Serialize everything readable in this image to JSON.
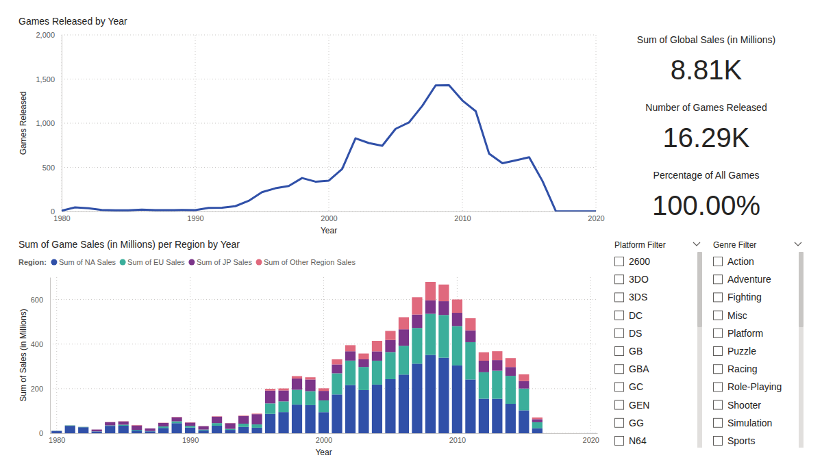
{
  "chart_data": [
    {
      "type": "line",
      "title": "Games Released by Year",
      "x_label": "Year",
      "y_label": "Games Released",
      "x": [
        1980,
        1981,
        1982,
        1983,
        1984,
        1985,
        1986,
        1987,
        1988,
        1989,
        1990,
        1991,
        1992,
        1993,
        1994,
        1995,
        1996,
        1997,
        1998,
        1999,
        2000,
        2001,
        2002,
        2003,
        2004,
        2005,
        2006,
        2007,
        2008,
        2009,
        2010,
        2011,
        2012,
        2013,
        2014,
        2015,
        2016,
        2017,
        2018,
        2020
      ],
      "values": [
        9,
        46,
        36,
        17,
        14,
        14,
        21,
        16,
        15,
        17,
        16,
        41,
        43,
        60,
        121,
        219,
        263,
        289,
        379,
        338,
        349,
        482,
        829,
        775,
        744,
        936,
        1008,
        1197,
        1428,
        1431,
        1257,
        1136,
        655,
        546,
        580,
        614,
        344,
        3,
        1,
        1
      ],
      "color": "#3050a8",
      "xlim": [
        1980,
        2020
      ],
      "xticks": [
        1980,
        1990,
        2000,
        2010,
        2020
      ],
      "ylim": [
        0,
        2000
      ],
      "yticks": [
        0,
        500,
        {
          "value": 1000,
          "label": "1,000"
        },
        {
          "value": 1500,
          "label": "1,500"
        },
        {
          "value": 2000,
          "label": "2,000"
        }
      ],
      "grid": true
    },
    {
      "type": "bar",
      "stacked": true,
      "title": "Sum of Game Sales (in Millions) per Region by Year",
      "x_label": "Year",
      "y_label": "Sum of Sales (in Millions)",
      "legend_title": "Region:",
      "legend": "top-left",
      "x": [
        1980,
        1981,
        1982,
        1983,
        1984,
        1985,
        1986,
        1987,
        1988,
        1989,
        1990,
        1991,
        1992,
        1993,
        1994,
        1995,
        1996,
        1997,
        1998,
        1999,
        2000,
        2001,
        2002,
        2003,
        2004,
        2005,
        2006,
        2007,
        2008,
        2009,
        2010,
        2011,
        2012,
        2013,
        2014,
        2015,
        2016,
        2017,
        2018,
        2020
      ],
      "series": [
        {
          "name": "Sum of NA Sales",
          "color": "#3050a8",
          "values": [
            10.59,
            33.4,
            26.92,
            7.76,
            33.28,
            33.73,
            12.5,
            8.46,
            23.87,
            45.15,
            25.46,
            12.76,
            33.87,
            15.12,
            28.15,
            24.82,
            86.76,
            94.75,
            128.36,
            126.06,
            94.49,
            173.98,
            216.19,
            193.59,
            218.29,
            242.61,
            263.12,
            312.05,
            351.44,
            338.85,
            304.24,
            241.21,
            154.96,
            154.77,
            131.97,
            102.82,
            22.66,
            0,
            0,
            0.27
          ]
        },
        {
          "name": "Sum of EU Sales",
          "color": "#3bae9b",
          "values": [
            0.67,
            1.96,
            1.65,
            0.8,
            2.1,
            4.74,
            2.84,
            1.41,
            6.59,
            8.44,
            7.63,
            3.95,
            11.71,
            4.65,
            14.88,
            14.9,
            47.26,
            48.32,
            66.9,
            62.67,
            52.75,
            94.89,
            109.74,
            103.81,
            107.32,
            121.55,
            129.24,
            160.18,
            184.4,
            191.59,
            176.57,
            167.31,
            118.78,
            125.8,
            125.65,
            97.71,
            26.76,
            0,
            0,
            0
          ]
        },
        {
          "name": "Sum of JP Sales",
          "color": "#7b3589",
          "values": [
            0,
            0,
            0,
            8.1,
            14.27,
            14.56,
            19.81,
            11.63,
            15.76,
            18.36,
            14.88,
            14.78,
            28.91,
            25.33,
            33.99,
            45.75,
            57.44,
            48.87,
            50.04,
            52.34,
            42.77,
            39.86,
            41.76,
            34.2,
            41.65,
            54.28,
            73.73,
            60.29,
            60.26,
            61.89,
            59.49,
            53.04,
            51.8,
            47.59,
            39.46,
            33.72,
            13.7,
            0.05,
            0,
            0
          ]
        },
        {
          "name": "Sum of Other Region Sales",
          "color": "#e0697d",
          "values": [
            0.12,
            0.32,
            0.31,
            0.14,
            0.7,
            0.92,
            1.93,
            0.2,
            0.99,
            1.5,
            1.4,
            0.74,
            1.65,
            0.89,
            2.2,
            2.64,
            7.69,
            9.13,
            11.03,
            10.05,
            11.62,
            22.76,
            27.28,
            26.01,
            47.29,
            40.58,
            54.43,
            77.58,
            82.39,
            74.77,
            59.9,
            54.39,
            37.82,
            39.82,
            40.02,
            30.01,
            7.75,
            0,
            0,
            0.02
          ]
        }
      ],
      "xlim": [
        1979.5,
        2020.5
      ],
      "xticks": [
        1980,
        1990,
        2000,
        2010,
        2020
      ],
      "ylim": [
        0,
        700
      ],
      "yticks": [
        0,
        200,
        400,
        600
      ],
      "grid": true
    }
  ],
  "cards": [
    {
      "label": "Sum of Global Sales (in Millions)",
      "value": "8.81K"
    },
    {
      "label": "Number of Games Released",
      "value": "16.29K"
    },
    {
      "label": "Percentage of All Games",
      "value": "100.00%"
    }
  ],
  "filters": [
    {
      "title": "Platform Filter",
      "items": [
        "2600",
        "3DO",
        "3DS",
        "DC",
        "DS",
        "GB",
        "GBA",
        "GC",
        "GEN",
        "GG",
        "N64"
      ]
    },
    {
      "title": "Genre Filter",
      "items": [
        "Action",
        "Adventure",
        "Fighting",
        "Misc",
        "Platform",
        "Puzzle",
        "Racing",
        "Role-Playing",
        "Shooter",
        "Simulation",
        "Sports"
      ]
    }
  ]
}
